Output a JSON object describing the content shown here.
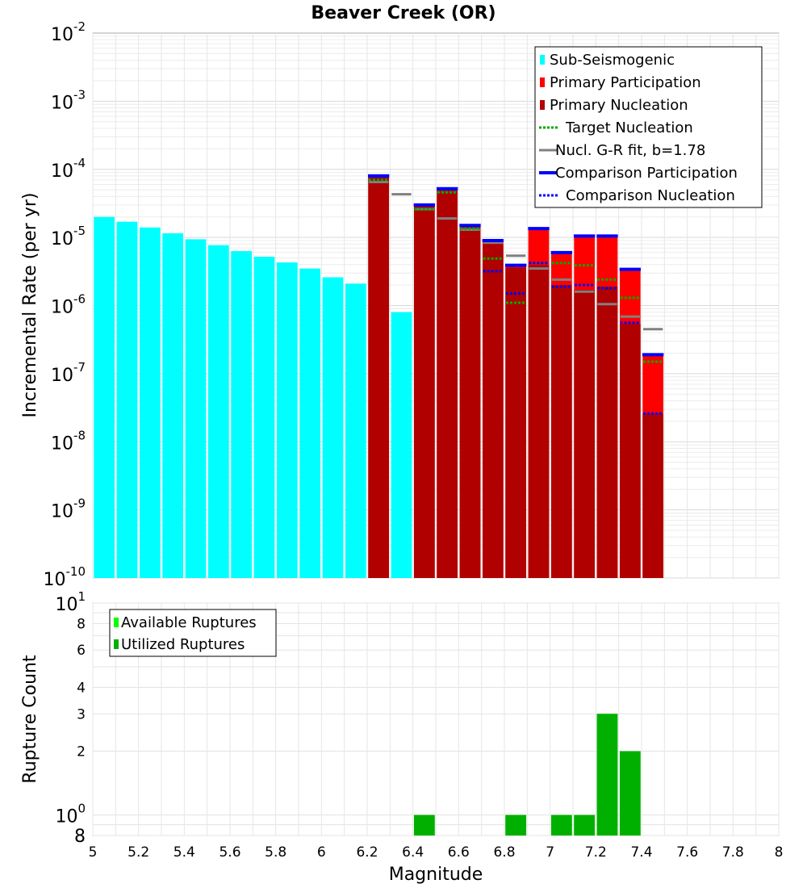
{
  "chart_data": [
    {
      "type": "bar",
      "title": "Beaver Creek (OR)",
      "xlabel": "Magnitude",
      "ylabel": "Incremental Rate (per yr)",
      "yscale": "log",
      "xlim": [
        5,
        8
      ],
      "ylim": [
        1e-10,
        0.01
      ],
      "bin_width": 0.1,
      "y_decades": [
        {
          "base": "10",
          "exp": "-2",
          "value": 0.01
        },
        {
          "base": "10",
          "exp": "-3",
          "value": 0.001
        },
        {
          "base": "10",
          "exp": "-4",
          "value": 0.0001
        },
        {
          "base": "10",
          "exp": "-5",
          "value": 1e-05
        },
        {
          "base": "10",
          "exp": "-6",
          "value": 1e-06
        },
        {
          "base": "10",
          "exp": "-7",
          "value": 1e-07
        },
        {
          "base": "10",
          "exp": "-8",
          "value": 1e-08
        },
        {
          "base": "10",
          "exp": "-9",
          "value": 1e-09
        },
        {
          "base": "10",
          "exp": "-10",
          "value": 1e-10
        }
      ],
      "legend": [
        {
          "label": "Sub-Seismogenic",
          "color": "#00ffff",
          "style": "bar"
        },
        {
          "label": "Primary Participation",
          "color": "#ff0000",
          "style": "bar"
        },
        {
          "label": "Primary Nucleation",
          "color": "#b00000",
          "style": "bar"
        },
        {
          "label": "Target Nucleation",
          "color": "#00aa00",
          "style": "dotted"
        },
        {
          "label": "Nucl. G-R fit, b=1.78",
          "color": "#808080",
          "style": "line"
        },
        {
          "label": "Comparison Participation",
          "color": "#0000ff",
          "style": "line"
        },
        {
          "label": "Comparison Nucleation",
          "color": "#0000ff",
          "style": "dotted"
        }
      ],
      "sub_seismogenic": {
        "x": [
          5.05,
          5.15,
          5.25,
          5.35,
          5.45,
          5.55,
          5.65,
          5.75,
          5.85,
          5.95,
          6.05,
          6.15,
          6.35
        ],
        "values": [
          2e-05,
          1.7e-05,
          1.4e-05,
          1.15e-05,
          9.4e-06,
          7.7e-06,
          6.3e-06,
          5.2e-06,
          4.3e-06,
          3.5e-06,
          2.6e-06,
          2.1e-06,
          8e-07
        ]
      },
      "supra_bins": {
        "x": [
          6.25,
          6.45,
          6.55,
          6.65,
          6.75,
          6.85,
          6.95,
          7.05,
          7.15,
          7.25,
          7.35,
          7.45
        ],
        "primary_participation": [
          8e-05,
          3e-05,
          5.2e-05,
          1.5e-05,
          9e-06,
          3.9e-06,
          1.35e-05,
          6e-06,
          1.05e-05,
          1.05e-05,
          3.4e-06,
          1.9e-07
        ],
        "primary_nucleation": [
          8e-05,
          3e-05,
          5.2e-05,
          1.5e-05,
          8e-06,
          3.6e-06,
          3.9e-06,
          2e-06,
          1.7e-06,
          1.9e-06,
          5.4e-07,
          2.6e-08
        ],
        "target_nucleation": [
          7e-05,
          2.6e-05,
          4.6e-05,
          1.35e-05,
          4.9e-06,
          1.1e-06,
          4.2e-06,
          4.2e-06,
          3.9e-06,
          2.4e-06,
          1.3e-06,
          1.5e-07
        ],
        "comparison_participation": [
          8e-05,
          3e-05,
          5.2e-05,
          1.5e-05,
          9e-06,
          3.9e-06,
          1.35e-05,
          6e-06,
          1.05e-05,
          1.05e-05,
          3.4e-06,
          1.9e-07
        ],
        "comparison_nucleation": [
          8e-05,
          3e-05,
          5.2e-05,
          1.5e-05,
          3.2e-06,
          1.5e-06,
          4.2e-06,
          1.9e-06,
          2e-06,
          1.8e-06,
          5.6e-07,
          2.6e-08
        ]
      },
      "gr_fit": {
        "x": [
          6.25,
          6.35,
          6.45,
          6.55,
          6.65,
          6.75,
          6.85,
          6.95,
          7.05,
          7.15,
          7.25,
          7.35,
          7.45
        ],
        "values": [
          6.5e-05,
          4.3e-05,
          2.6e-05,
          1.9e-05,
          1.3e-05,
          8.4e-06,
          5.4e-06,
          3.5e-06,
          2.4e-06,
          1.6e-06,
          1.05e-06,
          6.9e-07,
          4.5e-07
        ]
      },
      "x_ticks": [
        "5",
        "5.2",
        "5.4",
        "5.6",
        "5.8",
        "6",
        "6.2",
        "6.4",
        "6.6",
        "6.8",
        "7",
        "7.2",
        "7.4",
        "7.6",
        "7.8",
        "8"
      ]
    },
    {
      "type": "bar",
      "xlabel": "Magnitude",
      "ylabel": "Rupture Count",
      "yscale": "log",
      "xlim": [
        5,
        8
      ],
      "ylim": [
        0.8,
        10
      ],
      "y_decades": [
        {
          "base": "10",
          "exp": "1",
          "value": 10
        },
        {
          "base": "10",
          "exp": "0",
          "value": 1
        }
      ],
      "y_minor_labels": [
        {
          "label": "8",
          "value": 8
        },
        {
          "label": "6",
          "value": 6
        },
        {
          "label": "4",
          "value": 4
        },
        {
          "label": "3",
          "value": 3
        },
        {
          "label": "2",
          "value": 2
        },
        {
          "label": "8",
          "value": 0.8
        }
      ],
      "legend": [
        {
          "label": "Available Ruptures",
          "color": "#00ff00",
          "style": "bar"
        },
        {
          "label": "Utilized Ruptures",
          "color": "#00b000",
          "style": "bar"
        }
      ],
      "x": [
        6.45,
        6.85,
        7.05,
        7.15,
        7.25,
        7.35
      ],
      "available": [
        1,
        1,
        1,
        1,
        3,
        2
      ],
      "utilized": [
        1,
        1,
        1,
        1,
        3,
        2
      ]
    }
  ]
}
